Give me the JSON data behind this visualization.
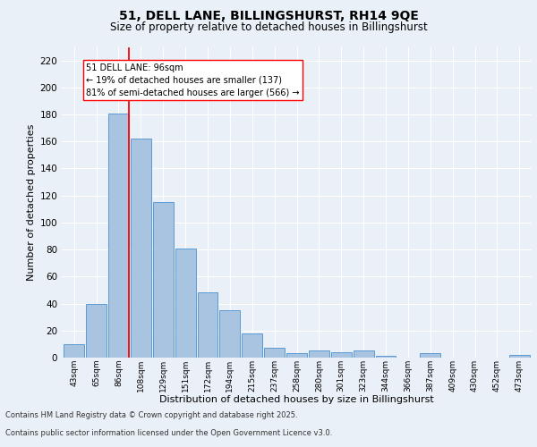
{
  "title1": "51, DELL LANE, BILLINGSHURST, RH14 9QE",
  "title2": "Size of property relative to detached houses in Billingshurst",
  "xlabel": "Distribution of detached houses by size in Billingshurst",
  "ylabel": "Number of detached properties",
  "categories": [
    "43sqm",
    "65sqm",
    "86sqm",
    "108sqm",
    "129sqm",
    "151sqm",
    "172sqm",
    "194sqm",
    "215sqm",
    "237sqm",
    "258sqm",
    "280sqm",
    "301sqm",
    "323sqm",
    "344sqm",
    "366sqm",
    "387sqm",
    "409sqm",
    "430sqm",
    "452sqm",
    "473sqm"
  ],
  "values": [
    10,
    40,
    181,
    162,
    115,
    81,
    48,
    35,
    18,
    7,
    3,
    5,
    4,
    5,
    1,
    0,
    3,
    0,
    0,
    0,
    2
  ],
  "bar_color": "#a8c4e0",
  "bar_edge_color": "#5b9bd5",
  "redline_x": 2,
  "annotation_text": "51 DELL LANE: 96sqm\n← 19% of detached houses are smaller (137)\n81% of semi-detached houses are larger (566) →",
  "annotation_box_color": "white",
  "annotation_box_edge": "red",
  "ylim": [
    0,
    230
  ],
  "yticks": [
    0,
    20,
    40,
    60,
    80,
    100,
    120,
    140,
    160,
    180,
    200,
    220
  ],
  "footer1": "Contains HM Land Registry data © Crown copyright and database right 2025.",
  "footer2": "Contains public sector information licensed under the Open Government Licence v3.0.",
  "bg_color": "#eaf0f7",
  "plot_bg_color": "#eaf0f7"
}
